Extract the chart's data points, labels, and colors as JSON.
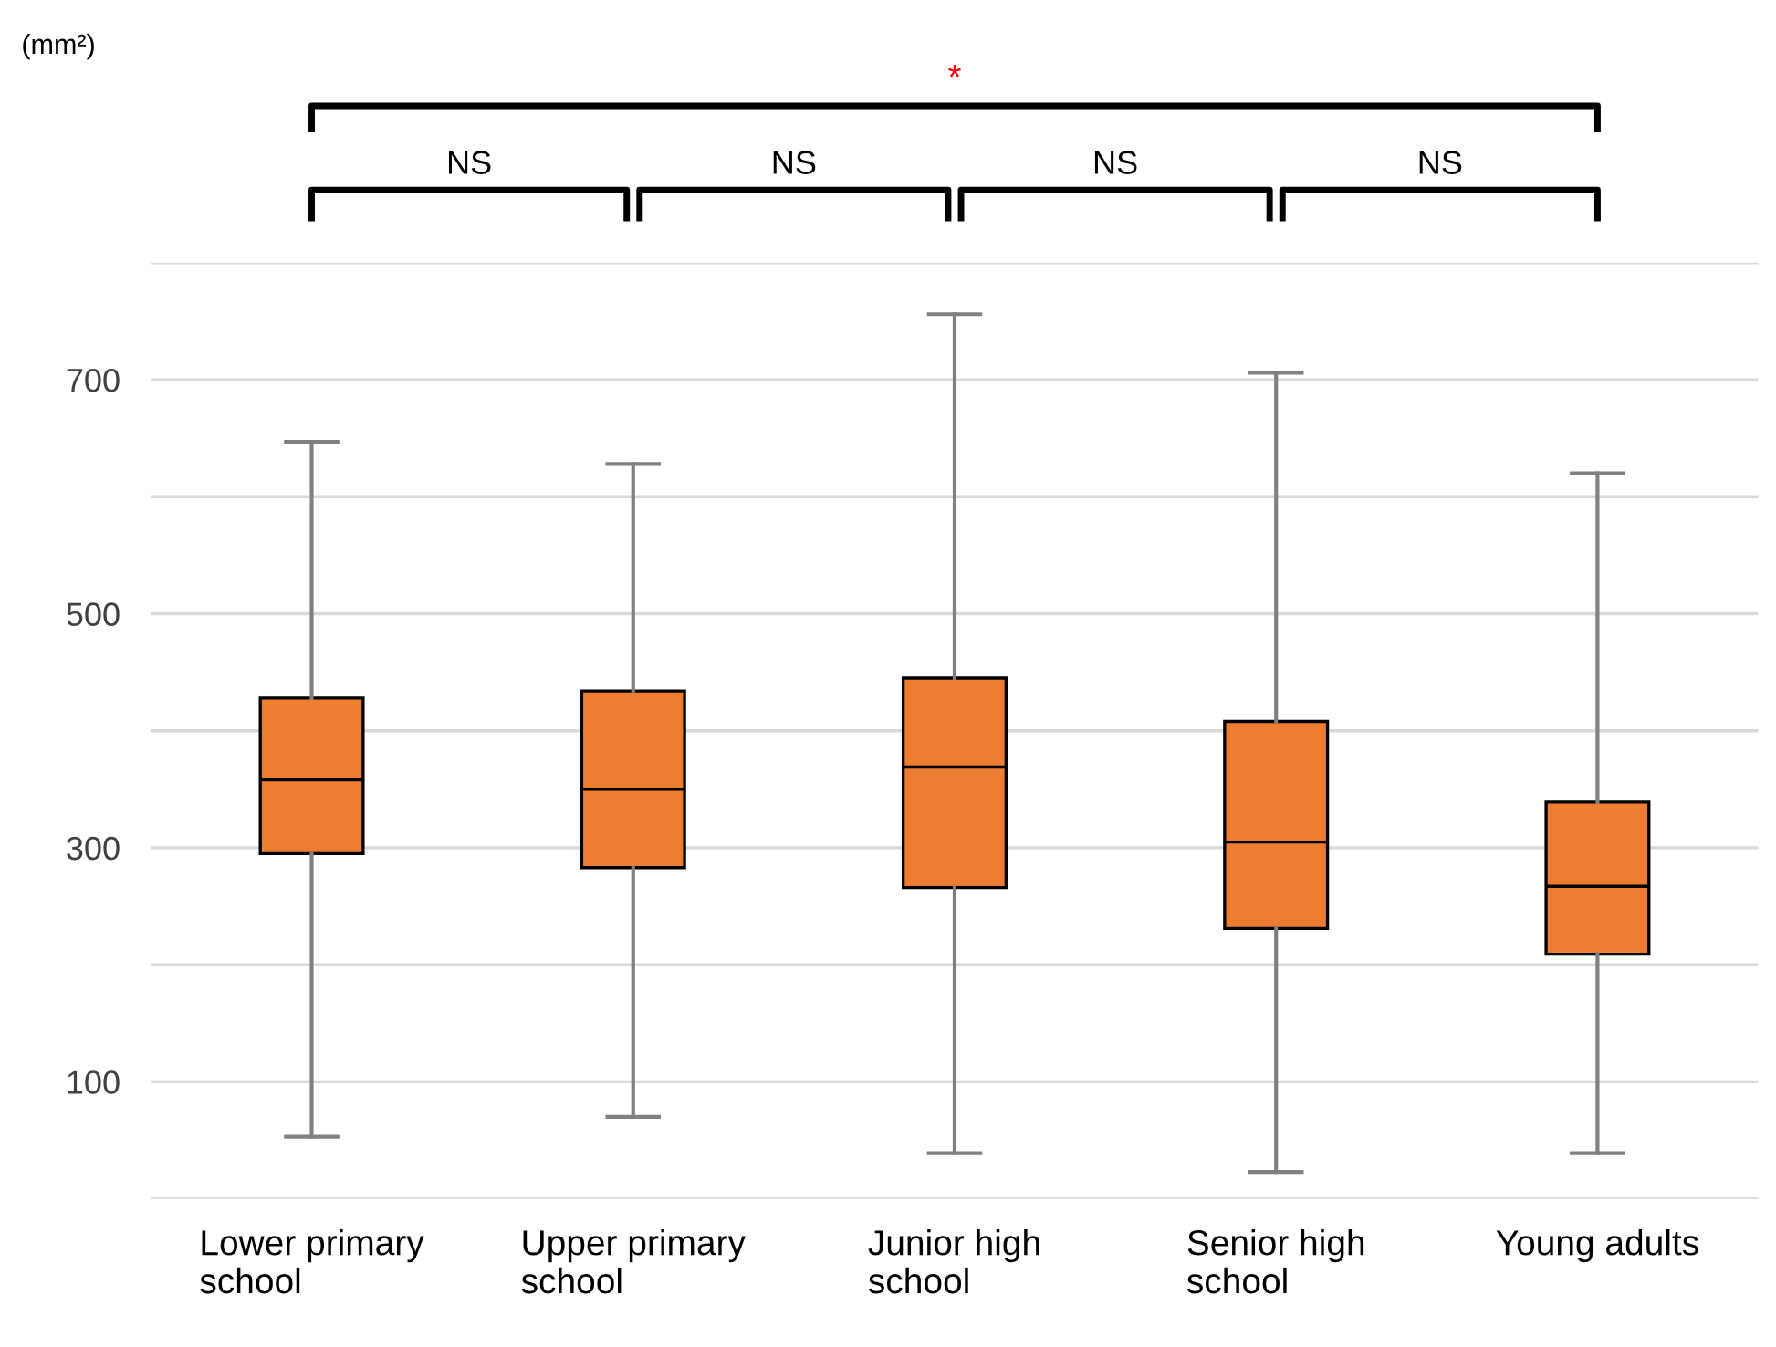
{
  "chart_data": {
    "type": "box",
    "categories": [
      "Lower primary school",
      "Upper primary school",
      "Junior high school",
      "Senior high school",
      "Young adults"
    ],
    "series": [
      {
        "color": "#ed7d31",
        "boxes": [
          {
            "low": 53,
            "q1": 295,
            "median": 358,
            "q3": 428,
            "high": 647
          },
          {
            "low": 70,
            "q1": 283,
            "median": 350,
            "q3": 434,
            "high": 628
          },
          {
            "low": 39,
            "q1": 266,
            "median": 369,
            "q3": 445,
            "high": 756
          },
          {
            "low": 23,
            "q1": 231,
            "median": 305,
            "q3": 408,
            "high": 706
          },
          {
            "low": 39,
            "q1": 209,
            "median": 267,
            "q3": 339,
            "high": 620
          }
        ]
      }
    ],
    "ylim": [
      0,
      800
    ],
    "yticks": [
      {
        "value": 0,
        "label": null
      },
      100,
      {
        "value": 200,
        "label": null
      },
      300,
      {
        "value": 400,
        "label": null
      },
      500,
      {
        "value": 600,
        "label": null
      },
      700,
      {
        "value": 800,
        "label": null
      }
    ],
    "grid": "y",
    "annotations": [
      "(mm²)",
      "NS",
      "NS",
      "NS",
      "NS",
      "*"
    ]
  }
}
